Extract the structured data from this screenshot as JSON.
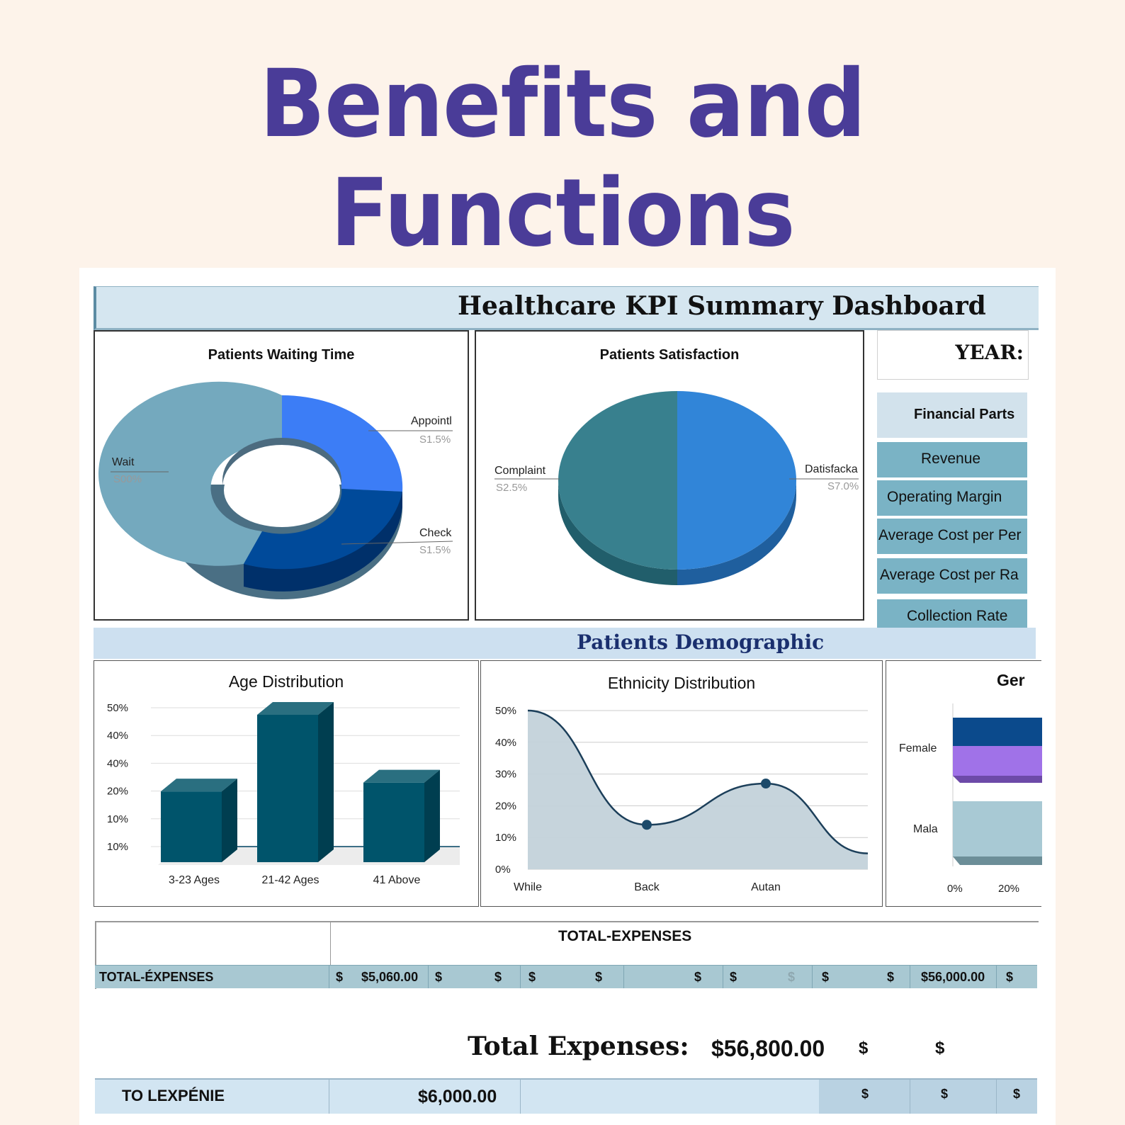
{
  "page_title": "Benefits and Functions",
  "dashboard": {
    "title": "Healthcare KPI Summary Dashboard",
    "year_label": "YEAR:",
    "financial": {
      "header": "Financial Parts",
      "items": [
        "Revenue",
        "Operating Margin",
        "Average Cost per Per",
        "Average Cost per Ra",
        "Collection Rate"
      ]
    },
    "waiting_time": {
      "title": "Patients Waiting Time",
      "slices": [
        {
          "name": "Appointl",
          "label": "S1.5%",
          "color": "#3c7df6"
        },
        {
          "name": "Check",
          "label": "S1.5%",
          "color": "#004a9a"
        },
        {
          "name": "Wait",
          "label": "S00%",
          "color": "#74a9be"
        }
      ]
    },
    "satisfaction": {
      "title": "Patients Satisfaction",
      "slices": [
        {
          "name": "Datisfacka",
          "label": "S7.0%",
          "color": "#3185d8"
        },
        {
          "name": "Complaint",
          "label": "S2.5%",
          "color": "#38808e"
        }
      ]
    },
    "demographic_title": "Patients Demographic",
    "gender_title": "Ger",
    "expenses": {
      "header": "TOTAL-EXPENSES",
      "row_label": "TOTAL-ÉXPENSES",
      "cells": [
        "$",
        "$5,060.00",
        "$",
        "$",
        "$",
        "$",
        "$",
        "$",
        "$",
        "$",
        "$",
        "$56,000.00",
        "$"
      ],
      "total_label": "Total Expenses:",
      "total_value": "$56,800.00",
      "total_dollars": [
        "$",
        "$"
      ],
      "bottom_label": "TO LEXPÉNIE",
      "bottom_value": "$6,000.00",
      "bottom_dollars": [
        "$",
        "$",
        "$"
      ]
    }
  },
  "chart_data": [
    {
      "type": "bar",
      "title": "Age Distribution",
      "categories": [
        "3-23 Ages",
        "21-42 Ages",
        "41 Above"
      ],
      "values": [
        24,
        50,
        27
      ],
      "y_tick_labels": [
        "50%",
        "40%",
        "40%",
        "20%",
        "10%",
        "10%"
      ],
      "color": "#00546b"
    },
    {
      "type": "area",
      "title": "Ethnicity Distribution",
      "categories": [
        "While",
        "Back",
        "Autan"
      ],
      "x_end_value": 4,
      "points": [
        [
          0,
          50
        ],
        [
          1.4,
          14
        ],
        [
          2.8,
          27
        ],
        [
          4,
          5
        ]
      ],
      "markers": [
        1,
        2
      ],
      "y_tick_labels": [
        "50%",
        "40%",
        "30%",
        "20%",
        "10%",
        "0%"
      ],
      "ylim": [
        0,
        50
      ]
    },
    {
      "type": "bar",
      "title": "Gender",
      "orientation": "horizontal",
      "categories": [
        "Female",
        "Mala"
      ],
      "x_tick_labels": [
        "0%",
        "20%"
      ],
      "series": [
        {
          "colors": [
            "#0b4a8c",
            "#a072e8"
          ]
        },
        {
          "colors": [
            "#a8c9d4"
          ]
        }
      ]
    }
  ]
}
